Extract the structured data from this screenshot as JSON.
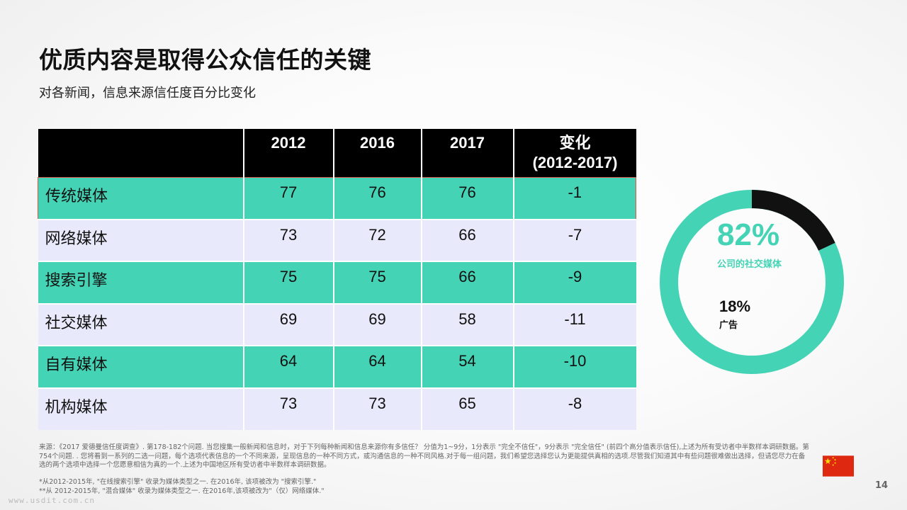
{
  "title": "优质内容是取得公众信任的关键",
  "subtitle": "对各新闻，信息来源信任度百分比变化",
  "table": {
    "headers": [
      "",
      "2012",
      "2016",
      "2017",
      "变化\n(2012-2017)"
    ],
    "rows": [
      [
        "传统媒体",
        "77",
        "76",
        "76",
        "-1"
      ],
      [
        "网络媒体",
        "73",
        "72",
        "66",
        "-7"
      ],
      [
        "搜索引擎",
        "75",
        "75",
        "66",
        "-9"
      ],
      [
        "社交媒体",
        "69",
        "69",
        "58",
        "-11"
      ],
      [
        "自有媒体",
        "64",
        "64",
        "54",
        "-10"
      ],
      [
        "机构媒体",
        "73",
        "73",
        "65",
        "-8"
      ]
    ]
  },
  "donut": {
    "main_value": "82%",
    "main_label": "公司的社交媒体",
    "second_value": "18%",
    "second_label": "广告",
    "main_fraction": 0.82,
    "colors": {
      "main": "#45d3b5",
      "second": "#111111"
    }
  },
  "footnotes": {
    "source": "来源：《2017 爱德曼信任度调查》. 第178-182个问题. 当您搜集一般新闻和信息时，对于下列每种新闻和信息来源你有多信任？ 分值为1~9分，1分表示 \"完全不信任\"，9分表示 \"完全信任\" (前四个高分值表示信任),上述为所有受访者中半数样本调研数据。第754个问题. . 您将看到一系列的二选一问题，每个选项代表信息的一个不同来源，呈现信息的一种不同方式，或沟通信息的一种不同风格.对于每一组问题，我们希望您选择您认为更能提供真相的选项.尽管我们知道其中有些问题很难做出选择，但请您尽力在备选的两个选项中选择一个您愿意相信为真的一个.上述为中国地区所有受访者中半数样本调研数据。",
    "note1": "*从2012-2015年, \"在线搜索引擎\" 收录为媒体类型之一. 在2016年, 该项被改为 \"搜索引擎.\"",
    "note2": "**从 2012-2015年, \"混合媒体\" 收录为媒体类型之一. 在2016年,该项被改为\"（仅）网络媒体.\""
  },
  "page_number": "14",
  "watermark": "www.usdit.com.cn",
  "flag_icon": "china-flag-icon",
  "colors": {
    "green": "#45d3b5",
    "light": "#e8e9fb",
    "header": "#000000"
  }
}
